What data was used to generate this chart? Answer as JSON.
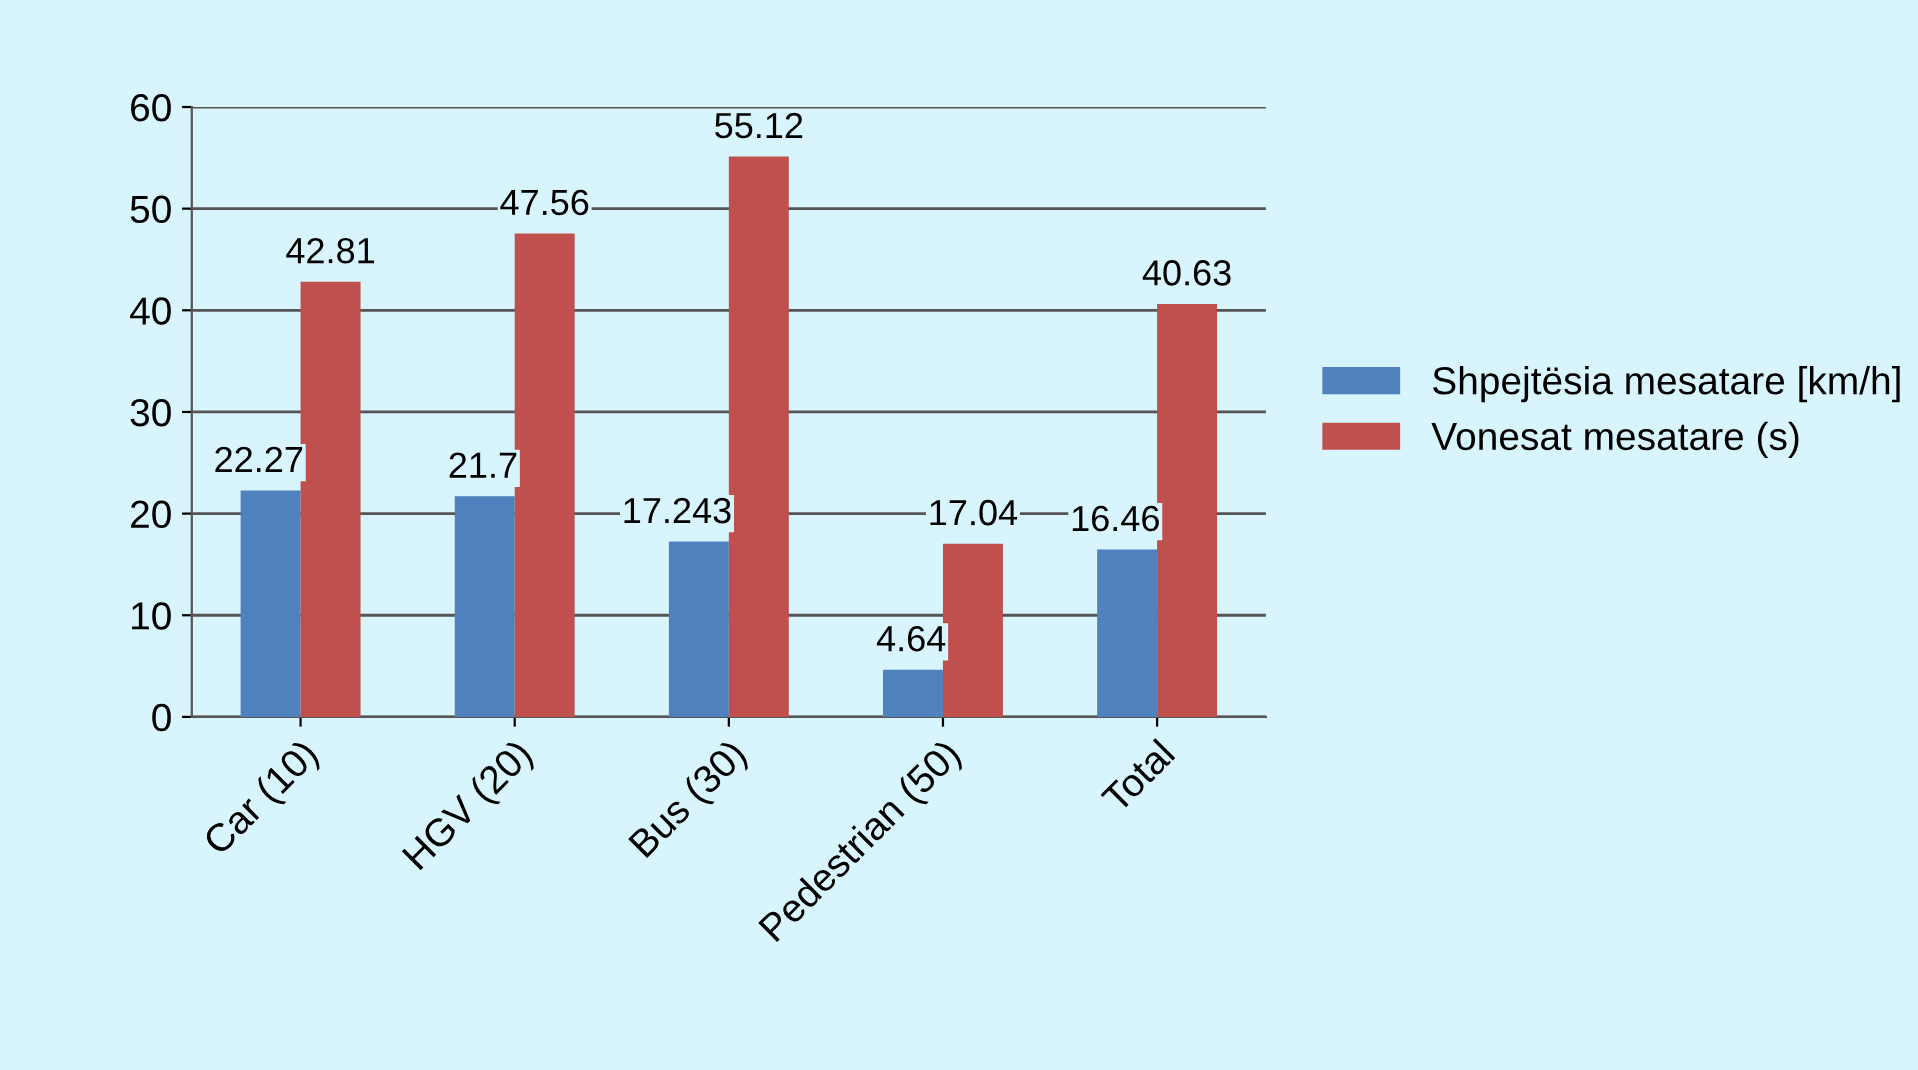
{
  "chart_data": {
    "type": "bar",
    "categories": [
      "Car (10)",
      "HGV (20)",
      "Bus (30)",
      "Pedestrian (50)",
      "Total"
    ],
    "series": [
      {
        "name": "Shpejtësia mesatare [km/h]",
        "color": "#4f81bd",
        "values": [
          22.27,
          21.7,
          17.243,
          4.64,
          16.46
        ]
      },
      {
        "name": "Vonesat mesatare (s)",
        "color": "#c0504d",
        "values": [
          42.81,
          47.56,
          55.12,
          17.04,
          40.63
        ]
      }
    ],
    "ylim": [
      0,
      60
    ],
    "yticks": [
      0,
      10,
      20,
      30,
      40,
      50,
      60
    ],
    "grid": "y",
    "legend": "right",
    "data_labels": true
  }
}
